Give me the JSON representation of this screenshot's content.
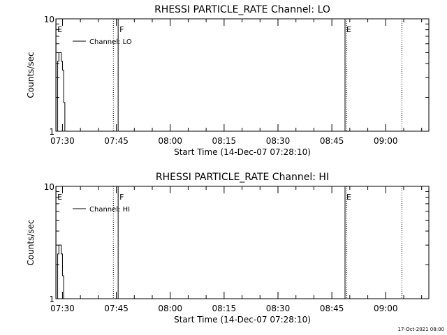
{
  "footer_timestamp": "17-Oct-2021 08:00",
  "chart_data": [
    {
      "type": "line",
      "title": "RHESSI PARTICLE_RATE Channel: LO",
      "xlabel": "Start Time (14-Dec-07 07:28:10)",
      "ylabel": "Counts/sec",
      "y_scale": "log",
      "ylim": [
        1,
        10
      ],
      "y_ticks": [
        "1",
        "10"
      ],
      "xlim": [
        "07:28:10",
        "09:12:00"
      ],
      "x_ticks": [
        "07:30",
        "07:45",
        "08:00",
        "08:15",
        "08:30",
        "08:45",
        "09:00"
      ],
      "legend_position": "top-left",
      "series": [
        {
          "name": "Channel: LO",
          "style": "step",
          "x": [
            "07:28:40",
            "07:29:00",
            "07:29:20",
            "07:29:40",
            "07:30:00",
            "07:30:20",
            "07:30:40"
          ],
          "y": [
            4.2,
            5.0,
            5.0,
            4.2,
            3.5,
            1.8,
            1.0
          ]
        }
      ],
      "markers": [
        {
          "label": "E",
          "time": "07:28:12",
          "style": "solid",
          "labeled": true
        },
        {
          "label": "",
          "time": "07:44:10",
          "style": "dotted",
          "labeled": false
        },
        {
          "label": "F",
          "time": "07:45:30",
          "style": "solid",
          "labeled": true
        },
        {
          "label": "E",
          "time": "08:48:40",
          "style": "solid",
          "labeled": true
        },
        {
          "label": "",
          "time": "08:49:10",
          "style": "dotted",
          "labeled": false
        },
        {
          "label": "",
          "time": "09:04:30",
          "style": "dotted",
          "labeled": false
        }
      ]
    },
    {
      "type": "line",
      "title": "RHESSI PARTICLE_RATE Channel: HI",
      "xlabel": "Start Time (14-Dec-07 07:28:10)",
      "ylabel": "Counts/sec",
      "y_scale": "log",
      "ylim": [
        1,
        10
      ],
      "y_ticks": [
        "1",
        "10"
      ],
      "xlim": [
        "07:28:10",
        "09:12:00"
      ],
      "x_ticks": [
        "07:30",
        "07:45",
        "08:00",
        "08:15",
        "08:30",
        "08:45",
        "09:00"
      ],
      "legend_position": "top-left",
      "series": [
        {
          "name": "Channel: HI",
          "style": "step",
          "x": [
            "07:28:40",
            "07:29:00",
            "07:29:20",
            "07:29:40",
            "07:30:00",
            "07:30:20"
          ],
          "y": [
            2.5,
            3.0,
            3.0,
            2.5,
            1.6,
            1.0
          ]
        }
      ],
      "markers": [
        {
          "label": "E",
          "time": "07:28:12",
          "style": "solid",
          "labeled": true
        },
        {
          "label": "",
          "time": "07:44:10",
          "style": "dotted",
          "labeled": false
        },
        {
          "label": "F",
          "time": "07:45:30",
          "style": "solid",
          "labeled": true
        },
        {
          "label": "E",
          "time": "08:48:40",
          "style": "solid",
          "labeled": true
        },
        {
          "label": "",
          "time": "08:49:10",
          "style": "dotted",
          "labeled": false
        },
        {
          "label": "",
          "time": "09:04:30",
          "style": "dotted",
          "labeled": false
        }
      ]
    }
  ]
}
